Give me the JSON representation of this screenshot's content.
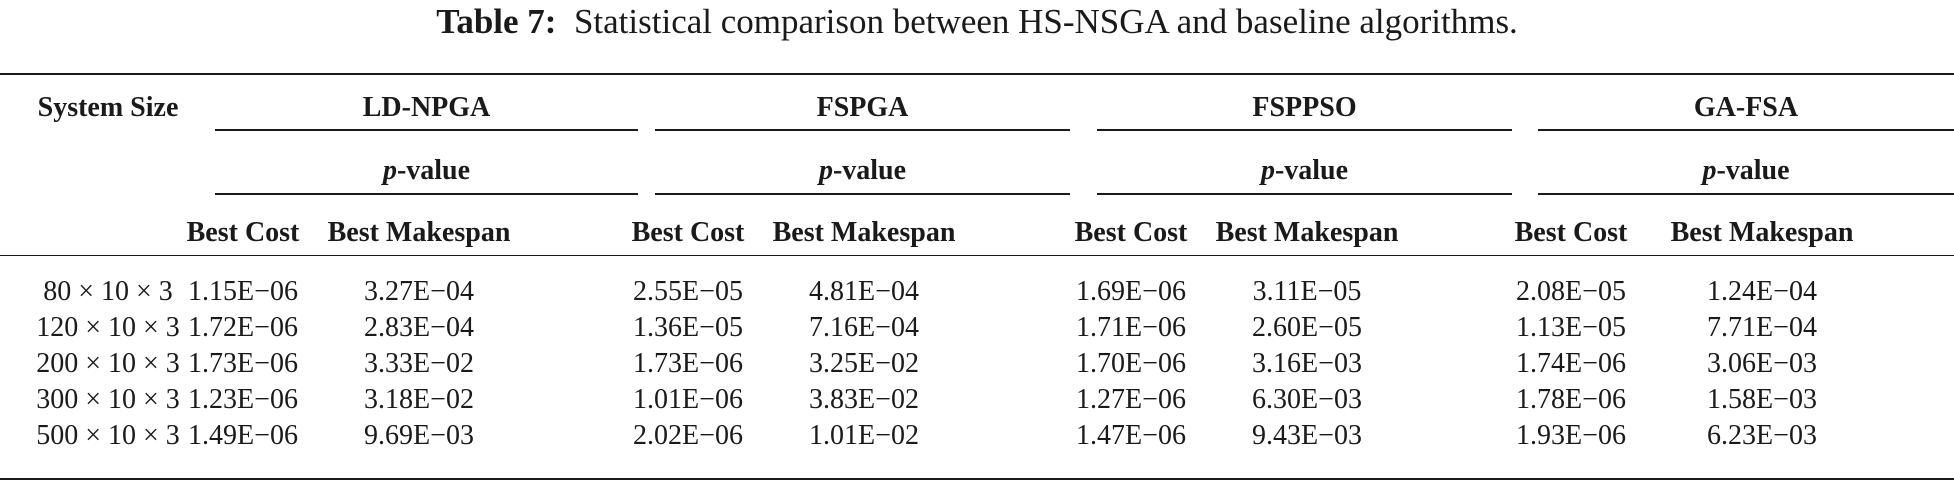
{
  "caption": {
    "label": "Table 7:",
    "text": "Statistical comparison between HS-NSGA and baseline algorithms."
  },
  "table": {
    "row_header": "System Size",
    "algorithms": [
      "LD-NPGA",
      "FSPGA",
      "FSPPSO",
      "GA-FSA"
    ],
    "pvalue_italic": "p",
    "pvalue_rest": "-value",
    "subcolumns": [
      "Best Cost",
      "Best Makespan"
    ],
    "rows": [
      {
        "size": "80 × 10 × 3",
        "values": [
          "1.15E−06",
          "3.27E−04",
          "2.55E−05",
          "4.81E−04",
          "1.69E−06",
          "3.11E−05",
          "2.08E−05",
          "1.24E−04"
        ]
      },
      {
        "size": "120 × 10 × 3",
        "values": [
          "1.72E−06",
          "2.83E−04",
          "1.36E−05",
          "7.16E−04",
          "1.71E−06",
          "2.60E−05",
          "1.13E−05",
          "7.71E−04"
        ]
      },
      {
        "size": "200 × 10 × 3",
        "values": [
          "1.73E−06",
          "3.33E−02",
          "1.73E−06",
          "3.25E−02",
          "1.70E−06",
          "3.16E−03",
          "1.74E−06",
          "3.06E−03"
        ]
      },
      {
        "size": "300 × 10 × 3",
        "values": [
          "1.23E−06",
          "3.18E−02",
          "1.01E−06",
          "3.83E−02",
          "1.27E−06",
          "6.30E−03",
          "1.78E−06",
          "1.58E−03"
        ]
      },
      {
        "size": "500 × 10 × 3",
        "values": [
          "1.49E−06",
          "9.69E−03",
          "2.02E−06",
          "1.01E−02",
          "1.47E−06",
          "9.43E−03",
          "1.93E−06",
          "6.23E−03"
        ]
      }
    ]
  }
}
